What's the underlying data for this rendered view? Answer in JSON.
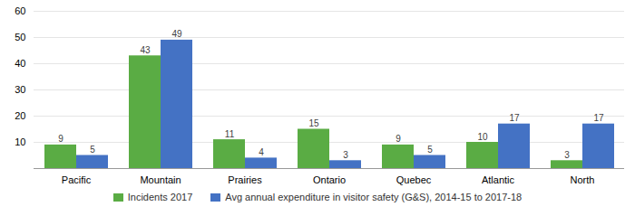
{
  "chart_data": {
    "type": "bar",
    "categories": [
      "Pacific",
      "Mountain",
      "Prairies",
      "Ontario",
      "Quebec",
      "Atlantic",
      "North"
    ],
    "series": [
      {
        "name": "Incidents 2017",
        "color": "#5aac44",
        "values": [
          9,
          43,
          11,
          15,
          9,
          10,
          3
        ]
      },
      {
        "name": "Avg annual expenditure in visitor safety (G&S), 2014-15 to 2017-18",
        "color": "#4472c4",
        "values": [
          5,
          49,
          4,
          3,
          5,
          17,
          17
        ]
      }
    ],
    "ylim": [
      0,
      60
    ],
    "yticks": [
      10,
      20,
      30,
      40,
      50,
      60
    ],
    "grid": true,
    "data_labels": true,
    "legend": "bottom"
  }
}
